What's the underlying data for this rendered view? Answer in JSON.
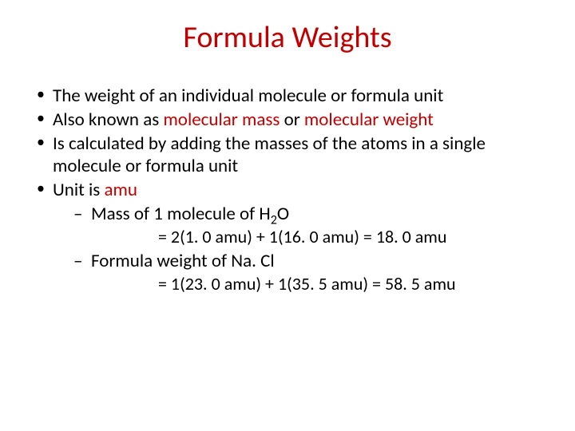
{
  "colors": {
    "accent": "#c00000",
    "text": "#000000",
    "background": "#ffffff"
  },
  "typography": {
    "title_fontsize": 38,
    "body_fontsize": 23,
    "calc_fontsize": 22,
    "font_family": "Calibri"
  },
  "title": "Formula Weights",
  "bullets": {
    "b1": "The weight of an individual molecule or formula unit",
    "b2_pre": "Also known as ",
    "b2_red1": "molecular mass",
    "b2_mid": " or ",
    "b2_red2": "molecular weight",
    "b3": "Is calculated by adding the masses of the atoms in a single molecule or formula unit",
    "b4_pre": "Unit is ",
    "b4_red": "amu"
  },
  "sub1": {
    "label_pre": "Mass of 1 molecule of H",
    "label_sub": "2",
    "label_post": "O",
    "calc": "= 2(1. 0 amu) + 1(16. 0 amu)  = 18. 0 amu"
  },
  "sub2": {
    "label": "Formula weight of Na. Cl",
    "calc": "= 1(23. 0 amu) + 1(35. 5 amu) = 58. 5 amu"
  }
}
